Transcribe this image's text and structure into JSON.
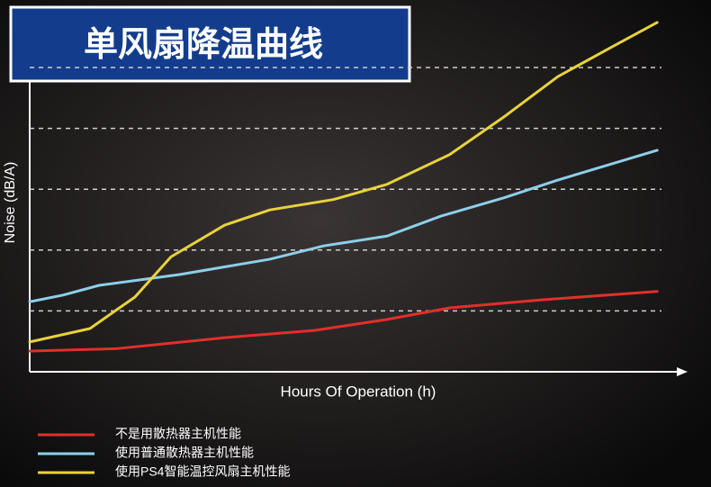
{
  "chart_data": {
    "type": "line",
    "title": "单风扇降温曲线",
    "y_label": "Noise (dB/A)",
    "x_label": "Hours Of Operation (h)",
    "xlim": [
      0,
      10
    ],
    "ylim": [
      0,
      6
    ],
    "yticks": [
      1,
      2,
      3,
      4,
      5
    ],
    "grid": true,
    "series": [
      {
        "name": "不是用散热器主机性能",
        "color": "#e0302a",
        "x": [
          0,
          1.33,
          2.98,
          4.36,
          5.46,
          6.42,
          7.8,
          9.59
        ],
        "values": [
          0.34,
          0.38,
          0.56,
          0.68,
          0.86,
          1.05,
          1.18,
          1.32
        ]
      },
      {
        "name": "使用普通散热器主机性能",
        "color": "#8ccfe8",
        "x": [
          0,
          0.51,
          1.06,
          2.3,
          3.67,
          4.5,
          5.46,
          6.29,
          7.25,
          8.07,
          9.59
        ],
        "values": [
          1.15,
          1.26,
          1.42,
          1.6,
          1.85,
          2.07,
          2.23,
          2.56,
          2.86,
          3.15,
          3.64
        ]
      },
      {
        "name": "使用PS4智能温控风扇主机性能",
        "color": "#e8d23a",
        "x": [
          0,
          0.92,
          1.61,
          2.16,
          2.98,
          3.67,
          4.64,
          5.46,
          6.42,
          7.25,
          8.07,
          8.9,
          9.59
        ],
        "values": [
          0.49,
          0.71,
          1.23,
          1.89,
          2.41,
          2.66,
          2.83,
          3.08,
          3.57,
          4.19,
          4.85,
          5.34,
          5.74
        ]
      }
    ]
  }
}
